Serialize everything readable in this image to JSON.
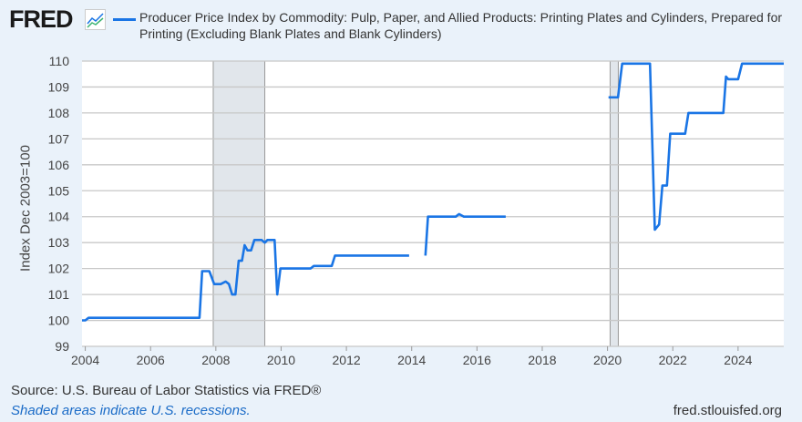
{
  "header": {
    "logo": "FRED",
    "title": "Producer Price Index by Commodity: Pulp, Paper, and Allied Products: Printing Plates and Cylinders, Prepared for Printing (Excluding Blank Plates and Blank Cylinders)"
  },
  "footer": {
    "source": "Source: U.S. Bureau of Labor Statistics via FRED®",
    "note": "Shaded areas indicate U.S. recessions.",
    "url": "fred.stlouisfed.org"
  },
  "chart_data": {
    "type": "line",
    "title": "Producer Price Index by Commodity: Pulp, Paper, and Allied Products: Printing Plates and Cylinders, Prepared for Printing (Excluding Blank Plates and Blank Cylinders)",
    "ylabel": "Index Dec 2003=100",
    "xlabel": "",
    "xlim": [
      2003.9,
      2025.4
    ],
    "ylim": [
      99,
      110
    ],
    "yticks": [
      "99",
      "100",
      "101",
      "102",
      "103",
      "104",
      "105",
      "106",
      "107",
      "108",
      "109",
      "110"
    ],
    "xticks": [
      "2004",
      "2006",
      "2008",
      "2010",
      "2012",
      "2014",
      "2016",
      "2018",
      "2020",
      "2022",
      "2024"
    ],
    "color": "#1a75e5",
    "recessions": [
      [
        2007.92,
        2009.5
      ],
      [
        2020.08,
        2020.33
      ]
    ],
    "series": [
      {
        "name": "PPI Printing Plates and Cylinders",
        "points": [
          [
            2003.9,
            100.0
          ],
          [
            2004.0,
            100.0
          ],
          [
            2004.1,
            100.1
          ],
          [
            2007.5,
            100.1
          ],
          [
            2007.58,
            101.9
          ],
          [
            2007.8,
            101.9
          ],
          [
            2007.95,
            101.4
          ],
          [
            2008.15,
            101.4
          ],
          [
            2008.3,
            101.5
          ],
          [
            2008.4,
            101.4
          ],
          [
            2008.5,
            101.0
          ],
          [
            2008.6,
            101.0
          ],
          [
            2008.7,
            102.3
          ],
          [
            2008.8,
            102.3
          ],
          [
            2008.88,
            102.9
          ],
          [
            2008.97,
            102.7
          ],
          [
            2009.08,
            102.7
          ],
          [
            2009.18,
            103.1
          ],
          [
            2009.4,
            103.1
          ],
          [
            2009.5,
            103.0
          ],
          [
            2009.58,
            103.1
          ],
          [
            2009.8,
            103.1
          ],
          [
            2009.88,
            101.0
          ],
          [
            2009.98,
            102.0
          ],
          [
            2010.9,
            102.0
          ],
          [
            2011.0,
            102.1
          ],
          [
            2011.55,
            102.1
          ],
          [
            2011.65,
            102.5
          ],
          [
            2013.92,
            102.5
          ],
          null,
          [
            2014.42,
            102.5
          ],
          [
            2014.5,
            104.0
          ],
          [
            2015.35,
            104.0
          ],
          [
            2015.45,
            104.1
          ],
          [
            2015.6,
            104.0
          ],
          [
            2016.88,
            104.0
          ],
          null,
          [
            2020.03,
            108.6
          ],
          [
            2020.32,
            108.6
          ],
          [
            2020.45,
            109.9
          ],
          [
            2021.3,
            109.9
          ],
          [
            2021.45,
            103.5
          ],
          [
            2021.58,
            103.7
          ],
          [
            2021.68,
            105.2
          ],
          [
            2021.82,
            105.2
          ],
          [
            2021.92,
            107.2
          ],
          [
            2022.38,
            107.2
          ],
          [
            2022.48,
            108.0
          ],
          [
            2023.55,
            108.0
          ],
          [
            2023.63,
            109.4
          ],
          [
            2023.7,
            109.3
          ],
          [
            2024.0,
            109.3
          ],
          [
            2024.12,
            109.9
          ],
          [
            2025.4,
            109.9
          ]
        ]
      }
    ]
  }
}
